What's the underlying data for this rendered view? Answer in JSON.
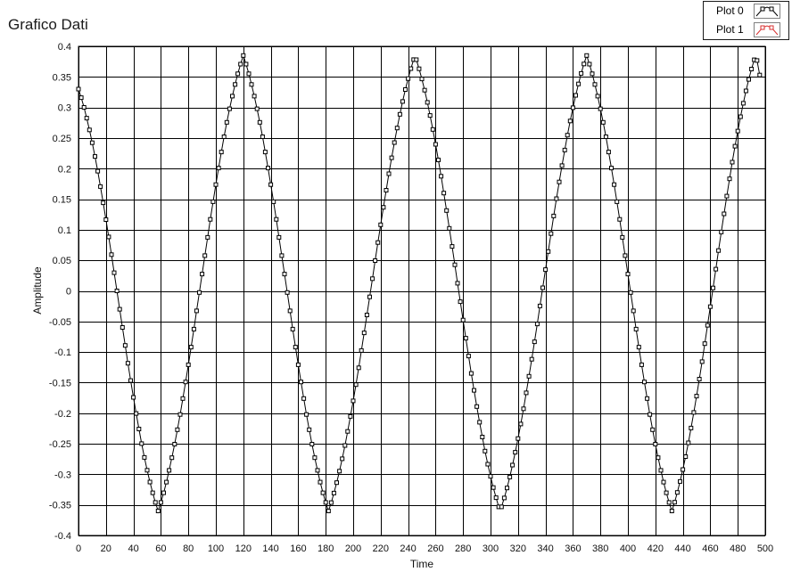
{
  "title": "Grafico Dati",
  "legend": [
    {
      "label": "Plot 0",
      "color": "#000000"
    },
    {
      "label": "Plot 1",
      "color": "#d93030"
    }
  ],
  "chart_data": {
    "type": "line",
    "title": "Grafico Dati",
    "xlabel": "Time",
    "ylabel": "Amplitude",
    "xlim": [
      0,
      500
    ],
    "ylim": [
      -0.4,
      0.4
    ],
    "xticks": [
      0,
      20,
      40,
      60,
      80,
      100,
      120,
      140,
      160,
      180,
      200,
      220,
      240,
      260,
      280,
      300,
      320,
      340,
      360,
      380,
      400,
      420,
      440,
      460,
      480,
      500
    ],
    "yticks": [
      0.4,
      0.35,
      0.3,
      0.25,
      0.2,
      0.15,
      0.1,
      0.05,
      0,
      -0.05,
      -0.1,
      -0.15,
      -0.2,
      -0.25,
      -0.3,
      -0.35,
      -0.4
    ],
    "ytick_labels": [
      "0.4",
      "0.35",
      "0.3",
      "0.25",
      "0.2",
      "0.15",
      "0.1",
      "0.05",
      "0",
      "-0.05",
      "-0.1",
      "-0.15",
      "-0.2",
      "-0.25",
      "-0.3",
      "-0.35",
      "-0.4"
    ],
    "grid": true,
    "legend_position": "top-right",
    "series": [
      {
        "name": "Plot 0",
        "color": "#000000",
        "marker": "square",
        "x_start": 0,
        "x_end": 497,
        "turning_points": [
          [
            0,
            0.33
          ],
          [
            58,
            -0.36
          ],
          [
            120,
            0.385
          ],
          [
            182,
            -0.36
          ],
          [
            245,
            0.385
          ],
          [
            307,
            -0.36
          ],
          [
            370,
            0.385
          ],
          [
            432,
            -0.36
          ],
          [
            493,
            0.385
          ],
          [
            497,
            0.345
          ]
        ]
      }
    ]
  }
}
